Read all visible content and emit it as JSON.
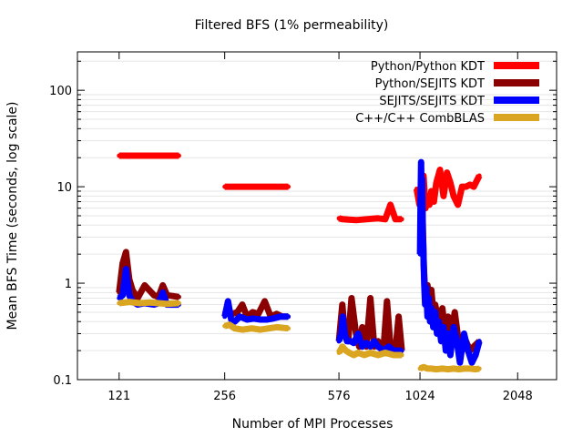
{
  "chart_data": {
    "type": "line",
    "title": "Filtered BFS (1% permeability)",
    "xlabel": "Number of MPI Processes",
    "ylabel": "Mean BFS Time (seconds, log scale)",
    "xscale": "log",
    "yscale": "log",
    "xlim": [
      90,
      2700
    ],
    "ylim": [
      0.1,
      250
    ],
    "xticks": [
      {
        "value": 121,
        "label": "121"
      },
      {
        "value": 256,
        "label": "256"
      },
      {
        "value": 576,
        "label": "576"
      },
      {
        "value": 1024,
        "label": "1024"
      },
      {
        "value": 2048,
        "label": "2048"
      }
    ],
    "yticks": [
      {
        "value": 0.1,
        "label": "0.1"
      },
      {
        "value": 1,
        "label": "1"
      },
      {
        "value": 10,
        "label": "10"
      },
      {
        "value": 100,
        "label": "100"
      }
    ],
    "grid": "horizontal minor lines (light gray)",
    "legend_position": "top-right",
    "series": [
      {
        "name": "Python/Python KDT",
        "color": "#ff0000",
        "segments": [
          {
            "x": [
              121,
              185
            ],
            "y": [
              21,
              21
            ]
          },
          {
            "x": [
              256,
              402
            ],
            "y": [
              10,
              10
            ]
          },
          {
            "x": [
              576,
              592,
              650,
              700,
              760,
              800,
              830,
              860,
              900
            ],
            "y": [
              4.7,
              4.6,
              4.5,
              4.6,
              4.7,
              4.6,
              6.5,
              4.6,
              4.6
            ]
          },
          {
            "x": [
              1000,
              1020,
              1035,
              1050,
              1065,
              1080,
              1095,
              1110,
              1130,
              1150,
              1180,
              1210,
              1240,
              1270,
              1300,
              1340,
              1380,
              1420,
              1460,
              1500,
              1560
            ],
            "y": [
              9.5,
              6.5,
              8,
              13,
              6,
              7.5,
              6.5,
              9,
              7,
              11,
              15,
              8,
              14,
              11,
              8,
              6.5,
              10,
              10,
              10.5,
              10,
              13
            ]
          }
        ]
      },
      {
        "name": "Python/SEJITS KDT",
        "color": "#8b0000",
        "segments": [
          {
            "x": [
              121,
              124,
              127,
              130,
              133,
              138,
              145,
              155,
              160,
              165,
              170,
              185
            ],
            "y": [
              0.8,
              1.6,
              2.1,
              1.1,
              0.85,
              0.7,
              0.95,
              0.75,
              0.72,
              0.95,
              0.75,
              0.72
            ]
          },
          {
            "x": [
              256,
              262,
              270,
              280,
              290,
              300,
              312,
              325,
              340,
              355,
              370,
              385,
              402
            ],
            "y": [
              0.5,
              0.52,
              0.48,
              0.5,
              0.6,
              0.45,
              0.5,
              0.48,
              0.65,
              0.45,
              0.48,
              0.45,
              0.45
            ]
          },
          {
            "x": [
              576,
              590,
              600,
              615,
              630,
              650,
              665,
              680,
              700,
              720,
              740,
              760,
              790,
              810,
              830,
              860,
              880,
              900
            ],
            "y": [
              0.25,
              0.6,
              0.3,
              0.25,
              0.7,
              0.3,
              0.22,
              0.35,
              0.22,
              0.7,
              0.22,
              0.25,
              0.2,
              0.65,
              0.22,
              0.2,
              0.45,
              0.2
            ]
          },
          {
            "x": [
              1030,
              1038,
              1045,
              1052,
              1060,
              1070,
              1080,
              1095,
              1110,
              1125,
              1140,
              1160,
              1180,
              1200,
              1225,
              1250,
              1280,
              1310,
              1340,
              1380,
              1420,
              1460,
              1500,
              1560
            ],
            "y": [
              2.8,
              9,
              3.8,
              1.5,
              0.9,
              0.7,
              0.95,
              0.6,
              0.85,
              0.5,
              0.6,
              0.45,
              0.35,
              0.55,
              0.3,
              0.45,
              0.3,
              0.5,
              0.28,
              0.2,
              0.25,
              0.2,
              0.22,
              0.25
            ]
          }
        ]
      },
      {
        "name": "SEJITS/SEJITS KDT",
        "color": "#0000ff",
        "segments": [
          {
            "x": [
              121,
              124,
              127,
              130,
              133,
              138,
              145,
              155,
              160,
              165,
              170,
              185
            ],
            "y": [
              0.7,
              0.75,
              1.4,
              0.75,
              0.65,
              0.6,
              0.62,
              0.6,
              0.62,
              0.8,
              0.6,
              0.6
            ]
          },
          {
            "x": [
              256,
              262,
              268,
              275,
              285,
              300,
              315,
              330,
              345,
              360,
              380,
              402
            ],
            "y": [
              0.45,
              0.65,
              0.42,
              0.4,
              0.45,
              0.42,
              0.43,
              0.42,
              0.42,
              0.43,
              0.45,
              0.45
            ]
          },
          {
            "x": [
              576,
              585,
              592,
              600,
              610,
              625,
              640,
              660,
              680,
              700,
              720,
              740,
              760,
              790,
              820,
              850,
              880,
              900
            ],
            "y": [
              0.25,
              0.3,
              0.45,
              0.3,
              0.25,
              0.25,
              0.24,
              0.3,
              0.22,
              0.24,
              0.22,
              0.25,
              0.22,
              0.2,
              0.22,
              0.2,
              0.2,
              0.2
            ]
          },
          {
            "x": [
              1024,
              1028,
              1032,
              1036,
              1040,
              1044,
              1048,
              1055,
              1062,
              1070,
              1080,
              1090,
              1100,
              1110,
              1125,
              1140,
              1155,
              1170,
              1190,
              1210,
              1230,
              1250,
              1270,
              1300,
              1330,
              1360,
              1400,
              1440,
              1480,
              1520,
              1560
            ],
            "y": [
              2,
              7,
              18,
              4,
              12,
              3,
              2.5,
              1,
              0.6,
              0.9,
              0.45,
              0.7,
              0.4,
              0.55,
              0.35,
              0.5,
              0.3,
              0.4,
              0.25,
              0.35,
              0.2,
              0.3,
              0.18,
              0.35,
              0.25,
              0.15,
              0.3,
              0.2,
              0.15,
              0.18,
              0.25
            ]
          }
        ]
      },
      {
        "name": "C++/C++ CombBLAS",
        "color": "#daa520",
        "segments": [
          {
            "x": [
              121,
              130,
              140,
              150,
              160,
              170,
              185
            ],
            "y": [
              0.62,
              0.64,
              0.62,
              0.63,
              0.62,
              0.61,
              0.62
            ]
          },
          {
            "x": [
              256,
              265,
              275,
              290,
              310,
              330,
              350,
              370,
              402
            ],
            "y": [
              0.36,
              0.37,
              0.34,
              0.33,
              0.34,
              0.33,
              0.34,
              0.35,
              0.34
            ]
          },
          {
            "x": [
              576,
              590,
              605,
              620,
              640,
              660,
              690,
              720,
              760,
              800,
              850,
              900
            ],
            "y": [
              0.19,
              0.22,
              0.2,
              0.19,
              0.18,
              0.19,
              0.18,
              0.19,
              0.18,
              0.19,
              0.18,
              0.18
            ]
          },
          {
            "x": [
              1024,
              1050,
              1080,
              1110,
              1150,
              1200,
              1250,
              1300,
              1350,
              1400,
              1460,
              1520,
              1560
            ],
            "y": [
              0.13,
              0.135,
              0.13,
              0.13,
              0.128,
              0.13,
              0.128,
              0.13,
              0.128,
              0.13,
              0.13,
              0.128,
              0.13
            ]
          }
        ]
      }
    ]
  }
}
